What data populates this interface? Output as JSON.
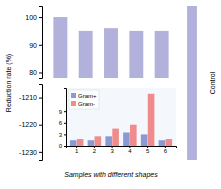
{
  "chart_data": [
    {
      "type": "bar",
      "ylabel": "Reduction rate (%)",
      "values": [
        100,
        95,
        96,
        95,
        95
      ],
      "color": "#9090cc",
      "ylim": [
        78,
        104
      ],
      "yticks": [
        80,
        90,
        100
      ],
      "tick_labels": "y"
    },
    {
      "type": "bar",
      "xlabel": "Samples with different shapes",
      "ylim": [
        -1233,
        -1205
      ],
      "yticks": [
        -1230,
        -1220,
        -1210
      ],
      "tick_labels": "y"
    },
    {
      "type": "bar",
      "ylabel": "Control",
      "values": [
        1.0
      ],
      "color": "#9090cc",
      "ylim": [
        0,
        1
      ],
      "tick_labels": false
    },
    {
      "type": "bar",
      "categories": [
        "1",
        "2",
        "3",
        "4",
        "5",
        "6"
      ],
      "series": [
        {
          "name": "Gram+",
          "color": "#7788cc",
          "values": [
            1.5,
            1.5,
            2.5,
            3.5,
            3.0,
            1.5
          ]
        },
        {
          "name": "Gram-",
          "color": "#ee7777",
          "values": [
            1.8,
            2.5,
            4.5,
            5.5,
            13.5,
            1.8
          ]
        }
      ],
      "ylim": [
        0,
        15
      ],
      "yticks": [
        0,
        3,
        6,
        9
      ],
      "legend": "upper left"
    }
  ]
}
